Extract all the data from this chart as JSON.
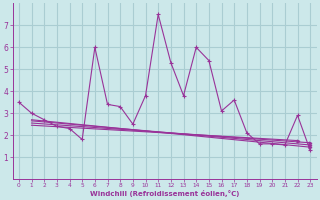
{
  "background_color": "#cce8ea",
  "grid_color": "#aacdd2",
  "line_color": "#993399",
  "xlabel": "Windchill (Refroidissement éolien,°C)",
  "xlim": [
    -0.5,
    23.5
  ],
  "ylim": [
    0,
    8
  ],
  "yticks": [
    1,
    2,
    3,
    4,
    5,
    6,
    7
  ],
  "xticks": [
    0,
    1,
    2,
    3,
    4,
    5,
    6,
    7,
    8,
    9,
    10,
    11,
    12,
    13,
    14,
    15,
    16,
    17,
    18,
    19,
    20,
    21,
    22,
    23
  ],
  "main_line_x": [
    0,
    1,
    2,
    3,
    4,
    5,
    6,
    7,
    8,
    9,
    10,
    11,
    12,
    13,
    14,
    15,
    16,
    17,
    18,
    19,
    20,
    21,
    22,
    23
  ],
  "main_line_y": [
    3.5,
    3.0,
    2.7,
    2.4,
    2.3,
    1.8,
    6.0,
    3.4,
    3.3,
    2.5,
    3.8,
    7.5,
    5.3,
    3.8,
    6.0,
    5.4,
    3.1,
    3.6,
    2.1,
    1.6,
    1.6,
    1.55,
    2.9,
    1.3
  ],
  "trend_lines": [
    {
      "x": [
        1,
        23
      ],
      "y": [
        2.7,
        1.45
      ]
    },
    {
      "x": [
        1,
        23
      ],
      "y": [
        2.65,
        1.55
      ]
    },
    {
      "x": [
        1,
        23
      ],
      "y": [
        2.55,
        1.65
      ]
    },
    {
      "x": [
        1,
        22
      ],
      "y": [
        2.45,
        1.75
      ]
    }
  ]
}
